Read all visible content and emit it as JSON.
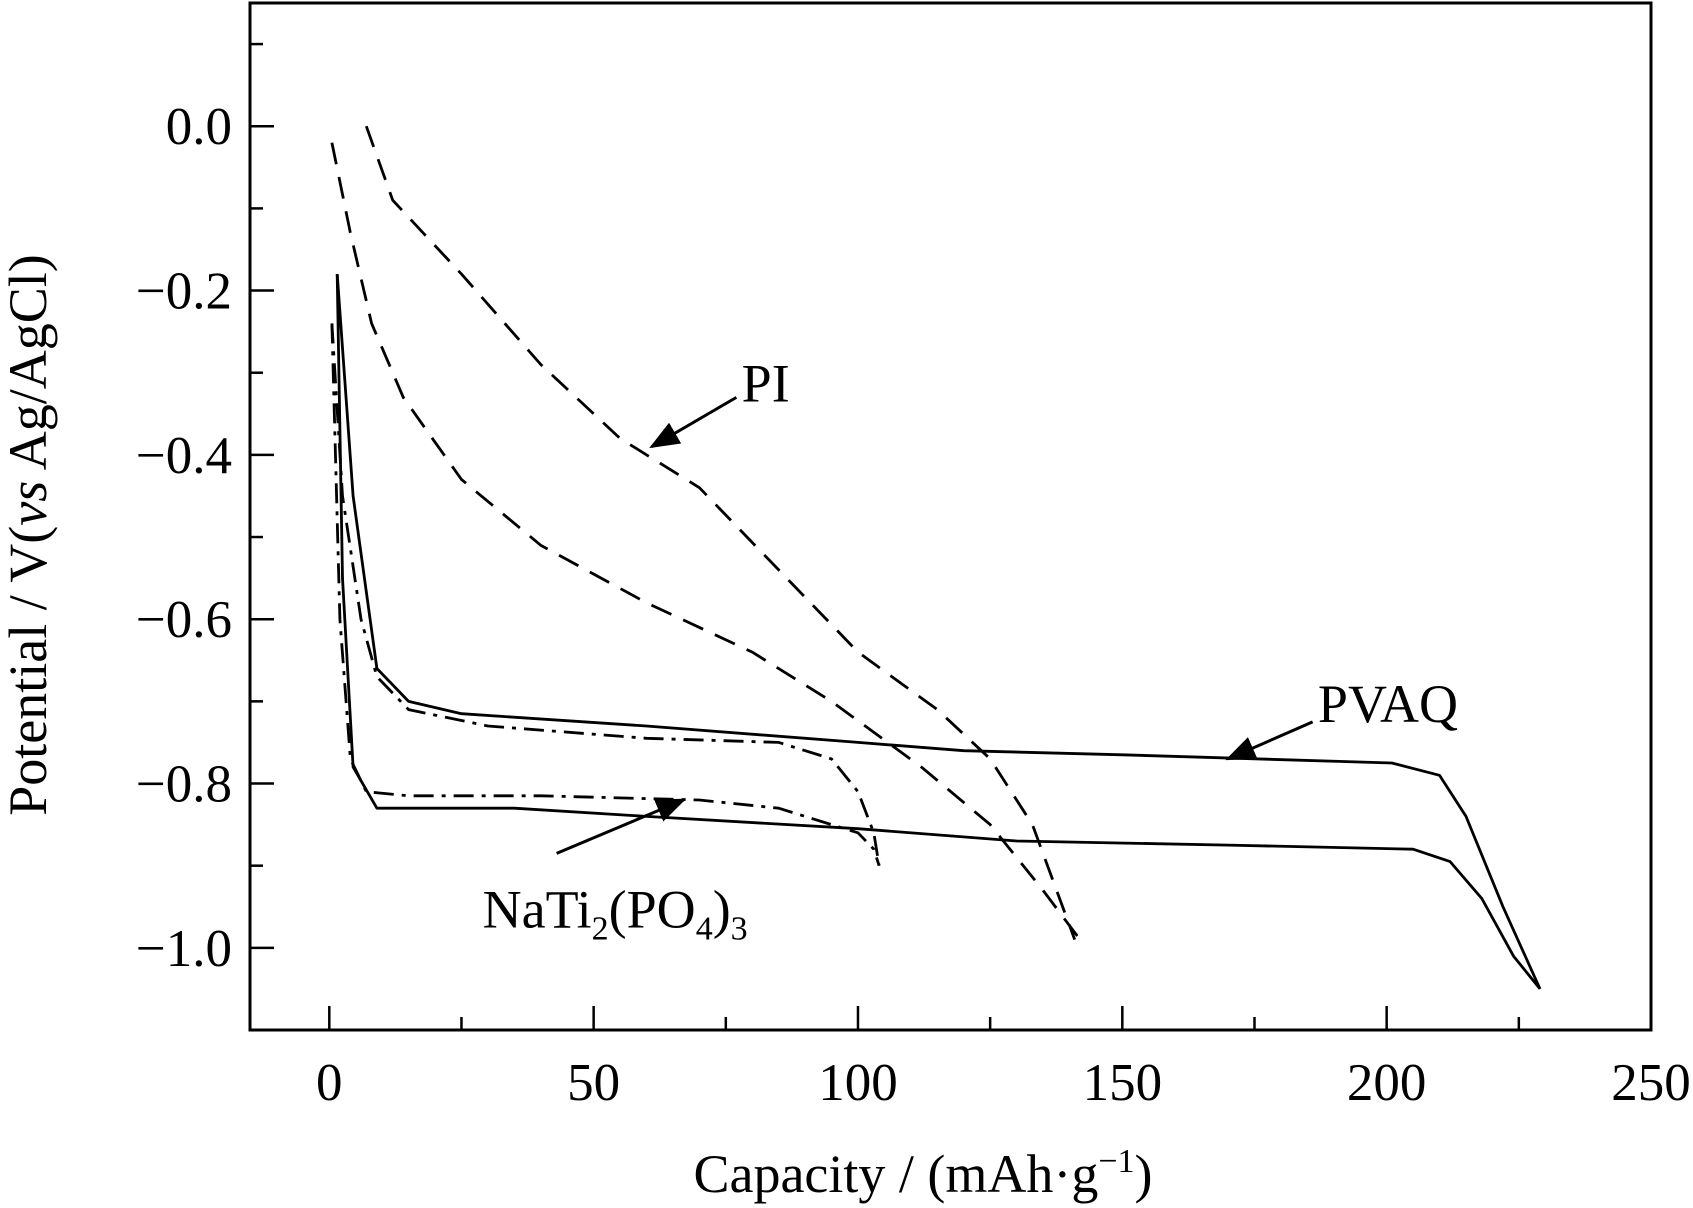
{
  "chart_data": {
    "type": "line",
    "title": "",
    "xlabel": "Capacity / (mAh·g",
    "xlabel_sup": "−1",
    "xlabel_close": ")",
    "ylabel_pre": "Potential / V(",
    "ylabel_italic": "vs",
    "ylabel_post": " Ag/AgCl)",
    "xlim": [
      -15,
      250
    ],
    "ylim": [
      -1.1,
      0.15
    ],
    "xticks": [
      0,
      50,
      100,
      150,
      200,
      250
    ],
    "xtick_labels": [
      "0",
      "50",
      "100",
      "150",
      "200",
      "250"
    ],
    "yticks": [
      0.0,
      -0.2,
      -0.4,
      -0.6,
      -0.8,
      -1.0
    ],
    "ytick_labels": [
      "0.0",
      "−0.2",
      "−0.4",
      "−0.6",
      "−0.8",
      "−1.0"
    ],
    "grid": false,
    "series": [
      {
        "name": "PVAQ",
        "style": "solid",
        "segments": [
          {
            "x": [
              1.5,
              4.5,
              9,
              15,
              25,
              60,
              100,
              120,
              150,
              201,
              210,
              215,
              222,
              229
            ],
            "y": [
              -0.18,
              -0.45,
              -0.66,
              -0.7,
              -0.715,
              -0.73,
              -0.75,
              -0.76,
              -0.765,
              -0.775,
              -0.79,
              -0.84,
              -0.95,
              -1.05
            ]
          },
          {
            "x": [
              1.5,
              2.5,
              4.5,
              9,
              35,
              60,
              100,
              130,
              170,
              205,
              212,
              218,
              224,
              229
            ],
            "y": [
              -0.18,
              -0.55,
              -0.78,
              -0.83,
              -0.83,
              -0.84,
              -0.855,
              -0.87,
              -0.875,
              -0.88,
              -0.895,
              -0.94,
              -1.01,
              -1.05
            ]
          }
        ]
      },
      {
        "name": "PI",
        "style": "dashed",
        "segments": [
          {
            "x": [
              7,
              12,
              25,
              40,
              55,
              70,
              85,
              100,
              115,
              125,
              133,
              141
            ],
            "y": [
              0.0,
              -0.09,
              -0.18,
              -0.29,
              -0.38,
              -0.44,
              -0.54,
              -0.64,
              -0.71,
              -0.77,
              -0.85,
              -0.99
            ]
          },
          {
            "x": [
              0.5,
              4,
              8,
              14,
              25,
              40,
              60,
              80,
              95,
              112,
              125,
              135,
              142
            ],
            "y": [
              -0.02,
              -0.13,
              -0.24,
              -0.33,
              -0.43,
              -0.51,
              -0.58,
              -0.64,
              -0.7,
              -0.78,
              -0.85,
              -0.93,
              -0.99
            ]
          }
        ]
      },
      {
        "name": "NaTi2(PO4)3",
        "style": "dashdot",
        "segments": [
          {
            "x": [
              0.5,
              2.5,
              6,
              9,
              15,
              30,
              60,
              85,
              95,
              100,
              103,
              104
            ],
            "y": [
              -0.24,
              -0.45,
              -0.6,
              -0.67,
              -0.71,
              -0.73,
              -0.745,
              -0.75,
              -0.77,
              -0.81,
              -0.86,
              -0.9
            ]
          },
          {
            "x": [
              0.5,
              2,
              4,
              7,
              15,
              40,
              70,
              85,
              95,
              100,
              103,
              104
            ],
            "y": [
              -0.24,
              -0.6,
              -0.77,
              -0.81,
              -0.815,
              -0.815,
              -0.82,
              -0.83,
              -0.85,
              -0.86,
              -0.88,
              -0.9
            ]
          }
        ]
      }
    ],
    "annotations": [
      {
        "name": "PI",
        "label_parts": [
          "PI"
        ],
        "text_x": 78,
        "text_y": -0.335,
        "arrow_from": [
          77,
          -0.33
        ],
        "arrow_to": [
          61,
          -0.39
        ]
      },
      {
        "name": "PVAQ",
        "label_parts": [
          "PVAQ"
        ],
        "text_x": 187,
        "text_y": -0.725,
        "arrow_from": [
          186,
          -0.725
        ],
        "arrow_to": [
          170,
          -0.77
        ]
      },
      {
        "name": "NaTi2(PO4)3",
        "label_parts": [
          "NaTi",
          "2",
          "(PO",
          "4",
          ")",
          "3"
        ],
        "text_x": 29,
        "text_y": -0.975,
        "arrow_from": [
          43,
          -0.885
        ],
        "arrow_to": [
          67,
          -0.82
        ]
      }
    ]
  }
}
